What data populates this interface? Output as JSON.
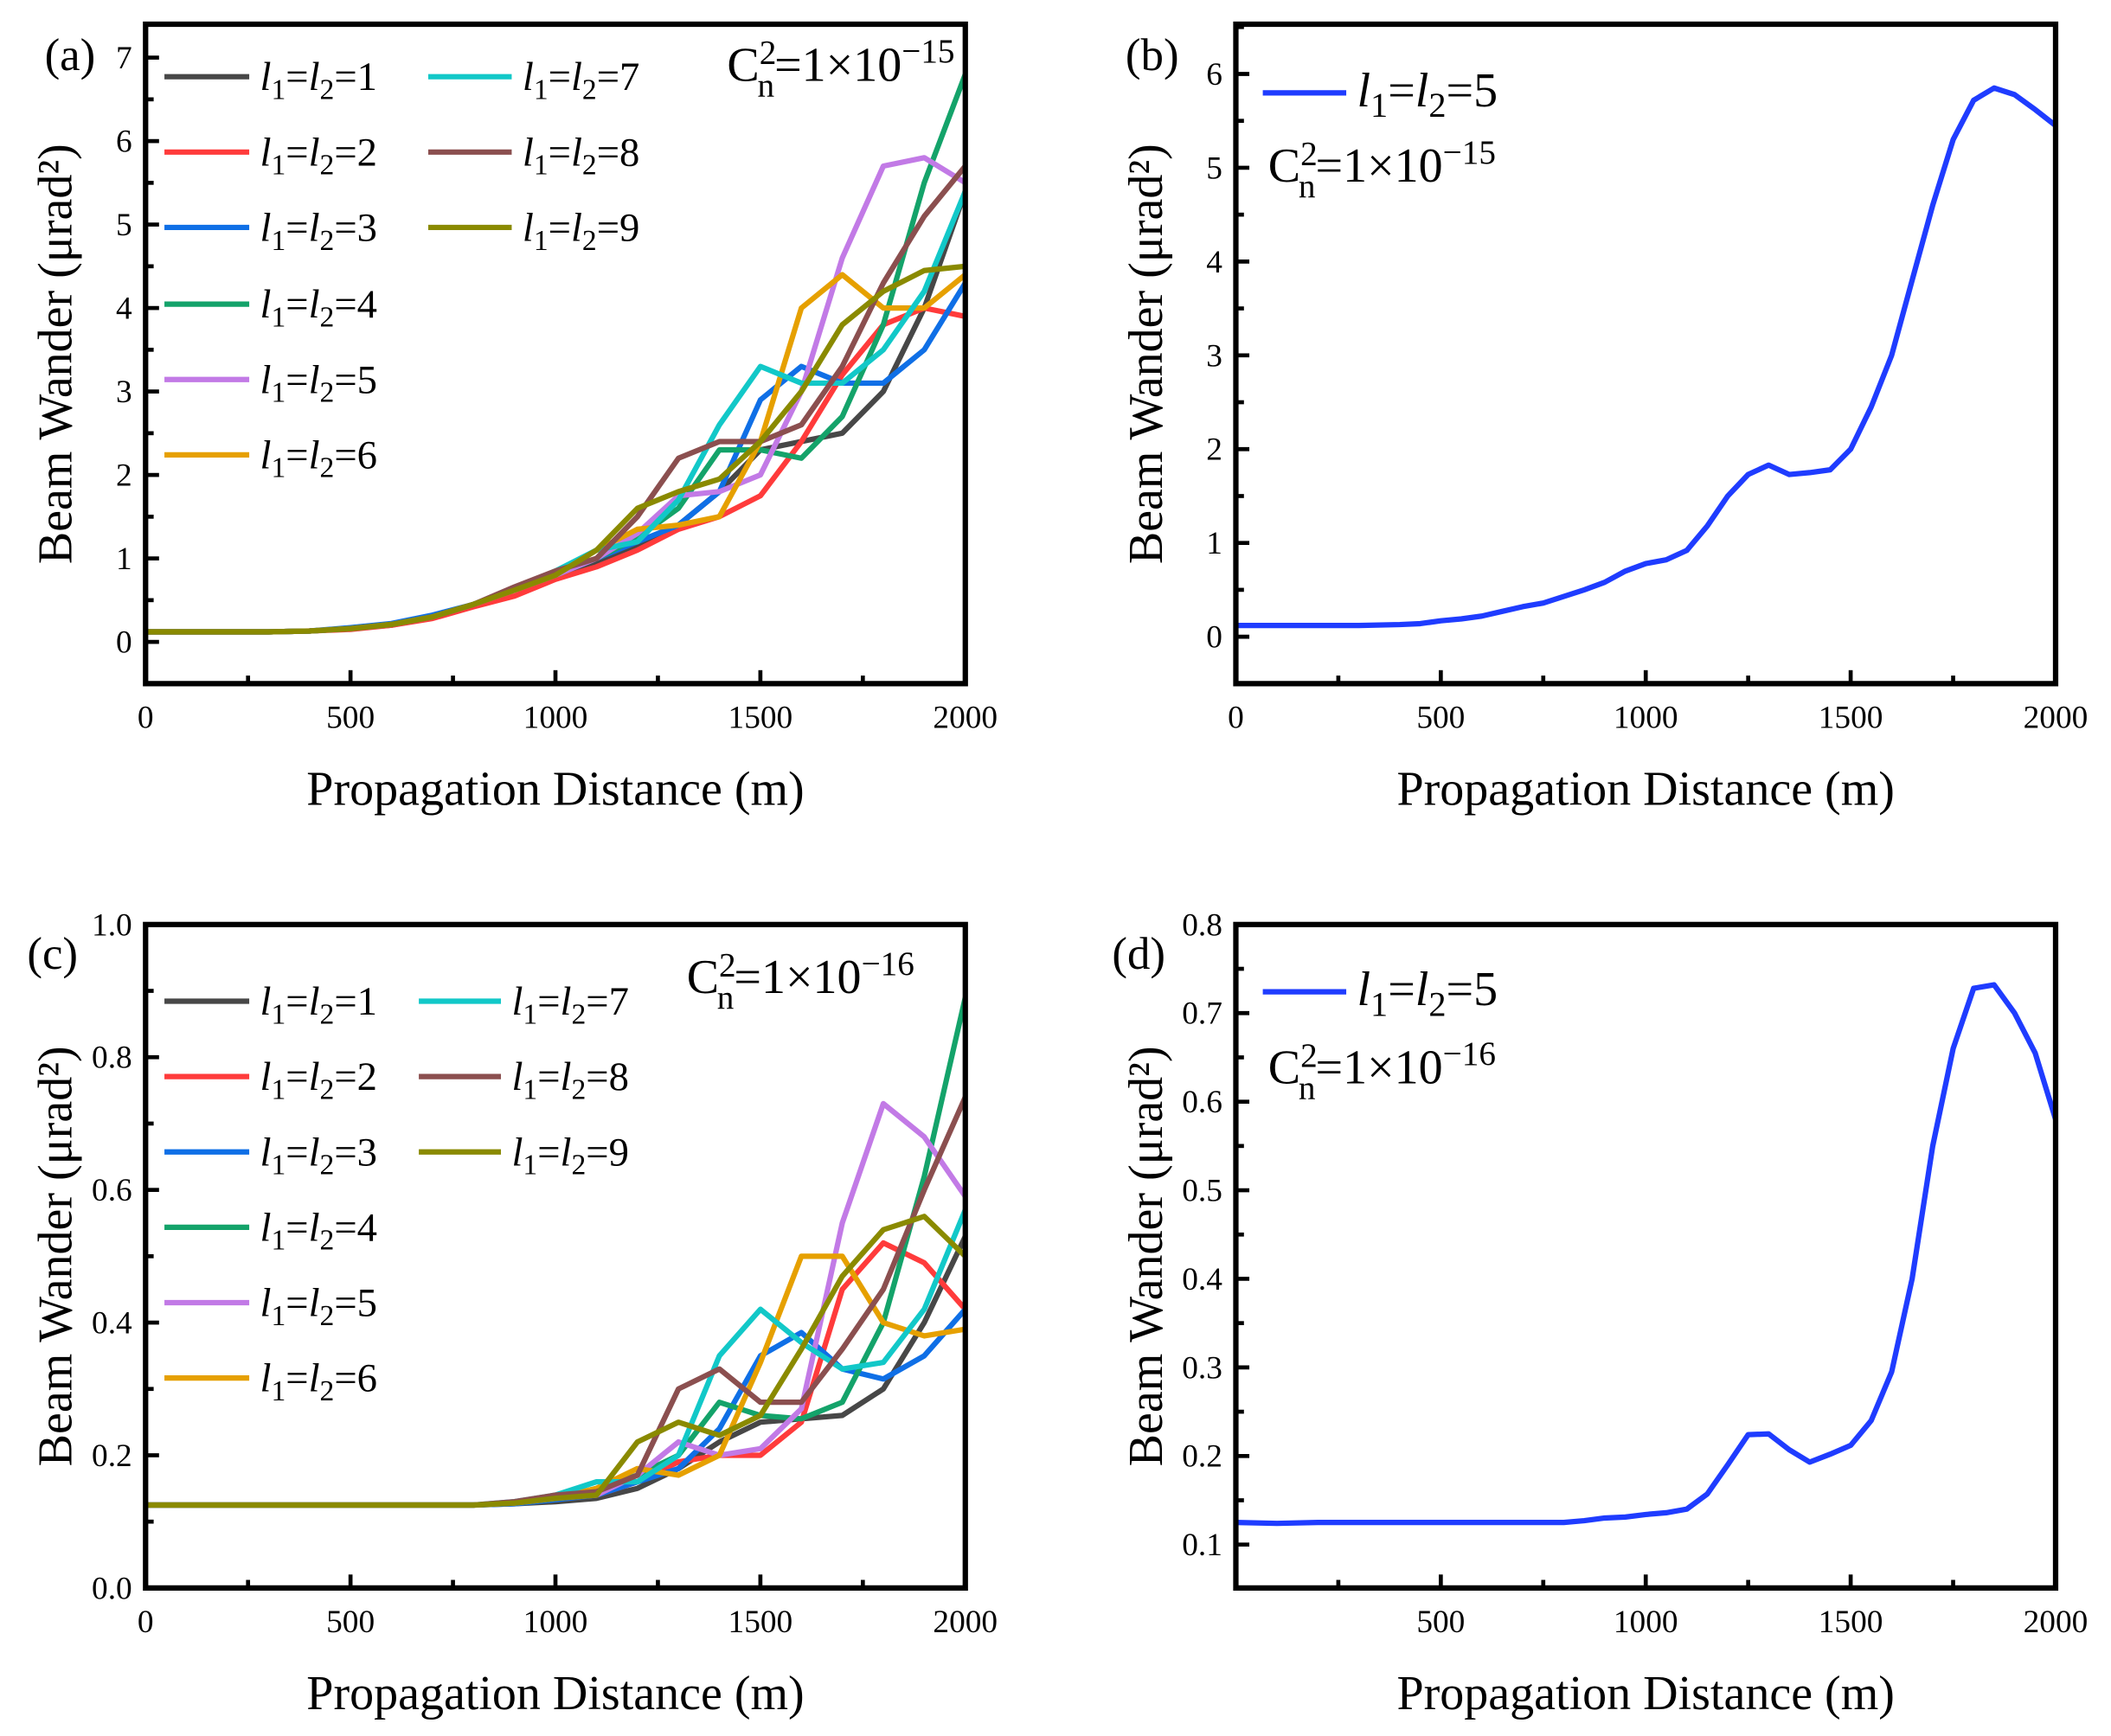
{
  "colors": {
    "l1": "#474747",
    "l2": "#ff3b3b",
    "l3": "#0f6fe6",
    "l4": "#14a36a",
    "l5": "#c27ae6",
    "l6": "#e6a000",
    "l7": "#12c8c8",
    "l8": "#8b4f4f",
    "l9": "#8a8a00",
    "single": "#1f3cff"
  },
  "chart_data": [
    {
      "panel": "(a)",
      "type": "line",
      "xlabel": "Propagation Distance (m)",
      "ylabel": "Beam Wander (μrad²)",
      "annotation": {
        "base": "C",
        "sub": "n",
        "sup": "2",
        "rest": "=1×10",
        "exp": "−15"
      },
      "xlim": [
        0,
        2000
      ],
      "ylim": [
        -0.5,
        7.4
      ],
      "xticks": [
        0,
        500,
        1000,
        1500,
        2000
      ],
      "yticks": [
        0,
        1,
        2,
        3,
        4,
        5,
        6,
        7
      ],
      "x": [
        0,
        100,
        200,
        300,
        400,
        500,
        600,
        700,
        800,
        900,
        1000,
        1100,
        1200,
        1300,
        1400,
        1500,
        1600,
        1700,
        1800,
        1900,
        2000
      ],
      "series": [
        {
          "name": "l1=l2=1",
          "color": "l1",
          "values": [
            0.12,
            0.12,
            0.12,
            0.12,
            0.13,
            0.16,
            0.2,
            0.3,
            0.45,
            0.62,
            0.8,
            0.95,
            1.15,
            1.4,
            1.8,
            2.3,
            2.4,
            2.5,
            3.0,
            4.0,
            5.4
          ]
        },
        {
          "name": "l1=l2=2",
          "color": "l2",
          "values": [
            0.12,
            0.12,
            0.12,
            0.12,
            0.13,
            0.15,
            0.2,
            0.28,
            0.42,
            0.55,
            0.75,
            0.9,
            1.1,
            1.35,
            1.5,
            1.75,
            2.4,
            3.2,
            3.8,
            4.0,
            3.9
          ]
        },
        {
          "name": "l1=l2=3",
          "color": "l3",
          "values": [
            0.12,
            0.12,
            0.12,
            0.12,
            0.13,
            0.17,
            0.22,
            0.32,
            0.45,
            0.62,
            0.8,
            1.0,
            1.2,
            1.4,
            1.8,
            2.9,
            3.3,
            3.1,
            3.1,
            3.5,
            4.3
          ]
        },
        {
          "name": "l1=l2=4",
          "color": "l4",
          "values": [
            0.12,
            0.12,
            0.12,
            0.12,
            0.13,
            0.16,
            0.21,
            0.3,
            0.45,
            0.62,
            0.8,
            1.0,
            1.25,
            1.6,
            2.3,
            2.3,
            2.2,
            2.7,
            3.8,
            5.5,
            6.8
          ]
        },
        {
          "name": "l1=l2=5",
          "color": "l5",
          "values": [
            0.12,
            0.12,
            0.12,
            0.12,
            0.13,
            0.16,
            0.21,
            0.3,
            0.45,
            0.62,
            0.8,
            1.0,
            1.3,
            1.75,
            1.8,
            2.0,
            3.0,
            4.6,
            5.7,
            5.8,
            5.5
          ]
        },
        {
          "name": "l1=l2=6",
          "color": "l6",
          "values": [
            0.12,
            0.12,
            0.12,
            0.12,
            0.13,
            0.16,
            0.21,
            0.3,
            0.45,
            0.62,
            0.8,
            1.1,
            1.35,
            1.4,
            1.5,
            2.4,
            4.0,
            4.4,
            4.0,
            4.0,
            4.4
          ]
        },
        {
          "name": "l1=l2=7",
          "color": "l7",
          "values": [
            0.12,
            0.12,
            0.12,
            0.12,
            0.13,
            0.16,
            0.21,
            0.3,
            0.45,
            0.64,
            0.85,
            1.1,
            1.2,
            1.7,
            2.6,
            3.3,
            3.1,
            3.1,
            3.5,
            4.2,
            5.4
          ]
        },
        {
          "name": "l1=l2=8",
          "color": "l8",
          "values": [
            0.12,
            0.12,
            0.12,
            0.12,
            0.13,
            0.16,
            0.21,
            0.3,
            0.45,
            0.66,
            0.85,
            1.0,
            1.5,
            2.2,
            2.4,
            2.4,
            2.6,
            3.3,
            4.3,
            5.1,
            5.7
          ]
        },
        {
          "name": "l1=l2=9",
          "color": "l9",
          "values": [
            0.12,
            0.12,
            0.12,
            0.12,
            0.13,
            0.16,
            0.21,
            0.3,
            0.45,
            0.62,
            0.8,
            1.1,
            1.6,
            1.8,
            1.95,
            2.4,
            3.0,
            3.8,
            4.2,
            4.45,
            4.5
          ]
        }
      ]
    },
    {
      "panel": "(b)",
      "type": "line",
      "xlabel": "Propagation Distance (m)",
      "ylabel": "Beam Wander (μrad²)",
      "annotation": {
        "base": "C",
        "sub": "n",
        "sup": "2",
        "rest": "=1×10",
        "exp": "−15"
      },
      "xlim": [
        0,
        2000
      ],
      "ylim": [
        -0.5,
        6.53
      ],
      "xticks": [
        0,
        500,
        1000,
        1500,
        2000
      ],
      "yticks": [
        0,
        1,
        2,
        3,
        4,
        5,
        6
      ],
      "x": [
        0,
        100,
        200,
        300,
        400,
        450,
        500,
        550,
        600,
        650,
        700,
        750,
        800,
        850,
        900,
        950,
        1000,
        1050,
        1100,
        1150,
        1200,
        1250,
        1300,
        1350,
        1400,
        1450,
        1500,
        1550,
        1600,
        1650,
        1700,
        1750,
        1800,
        1850,
        1900,
        1950,
        2000
      ],
      "series": [
        {
          "name": "l1=l2=5",
          "color": "single",
          "values": [
            0.12,
            0.12,
            0.12,
            0.12,
            0.13,
            0.14,
            0.17,
            0.19,
            0.22,
            0.27,
            0.32,
            0.36,
            0.43,
            0.5,
            0.58,
            0.7,
            0.78,
            0.82,
            0.92,
            1.18,
            1.5,
            1.73,
            1.83,
            1.73,
            1.75,
            1.78,
            2.0,
            2.45,
            3.0,
            3.8,
            4.6,
            5.3,
            5.72,
            5.85,
            5.78,
            5.62,
            5.45
          ]
        }
      ]
    },
    {
      "panel": "(c)",
      "type": "line",
      "xlabel": "Propagation Distance (m)",
      "ylabel": "Beam Wander (μrad²)",
      "annotation": {
        "base": "C",
        "sub": "n",
        "sup": "2",
        "rest": "=1×10",
        "exp": "−16"
      },
      "xlim": [
        0,
        2000
      ],
      "ylim": [
        0,
        1.0
      ],
      "xticks": [
        0,
        500,
        1000,
        1500,
        2000
      ],
      "yticks": [
        0.0,
        0.2,
        0.4,
        0.6,
        0.8,
        1.0
      ],
      "x": [
        0,
        100,
        200,
        300,
        400,
        500,
        600,
        700,
        800,
        900,
        1000,
        1100,
        1200,
        1300,
        1400,
        1500,
        1600,
        1700,
        1800,
        1900,
        2000
      ],
      "series": [
        {
          "name": "l1=l2=1",
          "color": "l1",
          "values": [
            0.125,
            0.125,
            0.125,
            0.125,
            0.125,
            0.125,
            0.125,
            0.125,
            0.125,
            0.127,
            0.13,
            0.135,
            0.15,
            0.18,
            0.22,
            0.25,
            0.255,
            0.26,
            0.3,
            0.4,
            0.53
          ]
        },
        {
          "name": "l1=l2=2",
          "color": "l2",
          "values": [
            0.125,
            0.125,
            0.125,
            0.125,
            0.125,
            0.125,
            0.125,
            0.125,
            0.125,
            0.128,
            0.135,
            0.14,
            0.16,
            0.19,
            0.2,
            0.2,
            0.25,
            0.45,
            0.52,
            0.49,
            0.42
          ]
        },
        {
          "name": "l1=l2=3",
          "color": "l3",
          "values": [
            0.125,
            0.125,
            0.125,
            0.125,
            0.125,
            0.125,
            0.125,
            0.125,
            0.125,
            0.127,
            0.133,
            0.14,
            0.16,
            0.18,
            0.24,
            0.35,
            0.385,
            0.33,
            0.315,
            0.35,
            0.42
          ]
        },
        {
          "name": "l1=l2=4",
          "color": "l4",
          "values": [
            0.125,
            0.125,
            0.125,
            0.125,
            0.125,
            0.125,
            0.125,
            0.125,
            0.125,
            0.128,
            0.135,
            0.15,
            0.17,
            0.2,
            0.28,
            0.26,
            0.255,
            0.28,
            0.4,
            0.62,
            0.89
          ]
        },
        {
          "name": "l1=l2=5",
          "color": "l5",
          "values": [
            0.125,
            0.125,
            0.125,
            0.125,
            0.125,
            0.125,
            0.125,
            0.125,
            0.125,
            0.128,
            0.135,
            0.14,
            0.17,
            0.22,
            0.2,
            0.21,
            0.27,
            0.55,
            0.73,
            0.68,
            0.59
          ]
        },
        {
          "name": "l1=l2=6",
          "color": "l6",
          "values": [
            0.125,
            0.125,
            0.125,
            0.125,
            0.125,
            0.125,
            0.125,
            0.125,
            0.125,
            0.128,
            0.135,
            0.15,
            0.18,
            0.17,
            0.2,
            0.34,
            0.5,
            0.5,
            0.4,
            0.38,
            0.39
          ]
        },
        {
          "name": "l1=l2=7",
          "color": "l7",
          "values": [
            0.125,
            0.125,
            0.125,
            0.125,
            0.125,
            0.125,
            0.125,
            0.125,
            0.125,
            0.13,
            0.14,
            0.16,
            0.16,
            0.2,
            0.35,
            0.42,
            0.37,
            0.33,
            0.34,
            0.42,
            0.57
          ]
        },
        {
          "name": "l1=l2=8",
          "color": "l8",
          "values": [
            0.125,
            0.125,
            0.125,
            0.125,
            0.125,
            0.125,
            0.125,
            0.125,
            0.125,
            0.13,
            0.14,
            0.145,
            0.17,
            0.3,
            0.33,
            0.28,
            0.28,
            0.36,
            0.45,
            0.6,
            0.74
          ]
        },
        {
          "name": "l1=l2=9",
          "color": "l9",
          "values": [
            0.125,
            0.125,
            0.125,
            0.125,
            0.125,
            0.125,
            0.125,
            0.125,
            0.125,
            0.128,
            0.135,
            0.14,
            0.22,
            0.25,
            0.23,
            0.26,
            0.36,
            0.47,
            0.54,
            0.56,
            0.5
          ]
        }
      ]
    },
    {
      "panel": "(d)",
      "type": "line",
      "xlabel": "Propagation Distance (m)",
      "ylabel": "Beam Wander (μrad²)",
      "annotation": {
        "base": "C",
        "sub": "n",
        "sup": "2",
        "rest": "=1×10",
        "exp": "−16"
      },
      "xlim": [
        0,
        2000
      ],
      "ylim": [
        0.051,
        0.8
      ],
      "xticks": [
        500,
        1000,
        1500,
        2000
      ],
      "yticks": [
        0.1,
        0.2,
        0.3,
        0.4,
        0.5,
        0.6,
        0.7,
        0.8
      ],
      "x": [
        0,
        100,
        200,
        300,
        400,
        500,
        600,
        700,
        800,
        850,
        900,
        950,
        1000,
        1050,
        1100,
        1150,
        1200,
        1250,
        1300,
        1350,
        1400,
        1450,
        1500,
        1550,
        1600,
        1650,
        1700,
        1750,
        1800,
        1850,
        1900,
        1950,
        2000
      ],
      "series": [
        {
          "name": "l1=l2=5",
          "color": "single",
          "values": [
            0.125,
            0.124,
            0.125,
            0.125,
            0.125,
            0.125,
            0.125,
            0.125,
            0.125,
            0.127,
            0.13,
            0.131,
            0.134,
            0.136,
            0.14,
            0.157,
            0.19,
            0.224,
            0.225,
            0.207,
            0.193,
            0.202,
            0.212,
            0.24,
            0.295,
            0.4,
            0.55,
            0.66,
            0.728,
            0.732,
            0.7,
            0.655,
            0.58
          ]
        }
      ]
    }
  ]
}
